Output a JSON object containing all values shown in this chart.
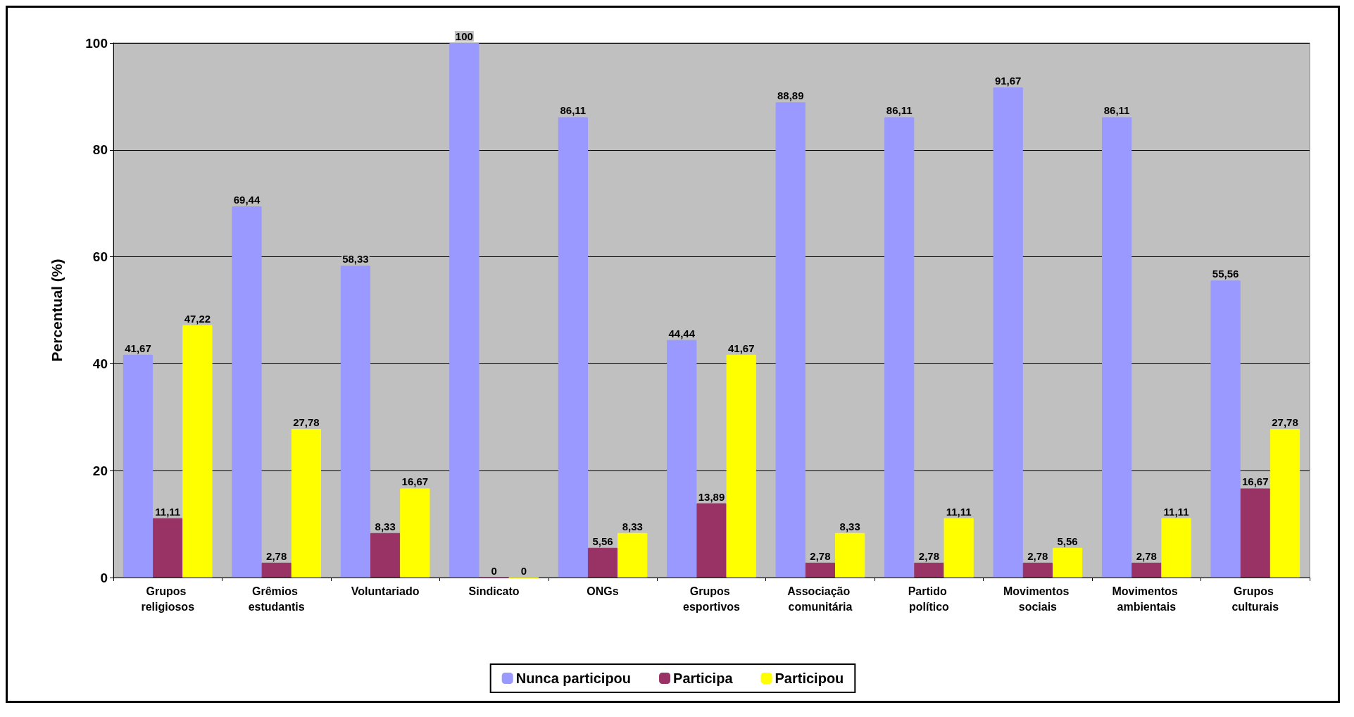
{
  "chart_data": {
    "type": "bar",
    "ylabel": "Percentual (%)",
    "categories": [
      "Grupos religiosos",
      "Grêmios estudantis",
      "Voluntariado",
      "Sindicato",
      "ONGs",
      "Grupos esportivos",
      "Associação comunitária",
      "Partido político",
      "Movimentos sociais",
      "Movimentos ambientais",
      "Grupos culturais"
    ],
    "series": [
      {
        "name": "Nunca participou",
        "color": "#9999ff",
        "values": [
          41.67,
          69.44,
          58.33,
          100,
          86.11,
          44.44,
          88.89,
          86.11,
          91.67,
          86.11,
          55.56
        ],
        "value_labels": [
          "41,67",
          "69,44",
          "58,33",
          "100",
          "86,11",
          "44,44",
          "88,89",
          "86,11",
          "91,67",
          "86,11",
          "55,56"
        ]
      },
      {
        "name": "Participa",
        "color": "#993366",
        "values": [
          11.11,
          2.78,
          8.33,
          0,
          5.56,
          13.89,
          2.78,
          2.78,
          2.78,
          2.78,
          16.67
        ],
        "value_labels": [
          "11,11",
          "2,78",
          "8,33",
          "0",
          "5,56",
          "13,89",
          "2,78",
          "2,78",
          "2,78",
          "2,78",
          "16,67"
        ]
      },
      {
        "name": "Participou",
        "color": "#ffff00",
        "values": [
          47.22,
          27.78,
          16.67,
          0,
          8.33,
          41.67,
          8.33,
          11.11,
          5.56,
          11.11,
          27.78
        ],
        "value_labels": [
          "47,22",
          "27,78",
          "16,67",
          "0",
          "8,33",
          "41,67",
          "8,33",
          "11,11",
          "5,56",
          "11,11",
          "27,78"
        ]
      }
    ],
    "ylim": [
      0,
      100
    ],
    "yticks": [
      0,
      20,
      40,
      60,
      80,
      100
    ],
    "grid": "y",
    "legend": "bottom"
  }
}
